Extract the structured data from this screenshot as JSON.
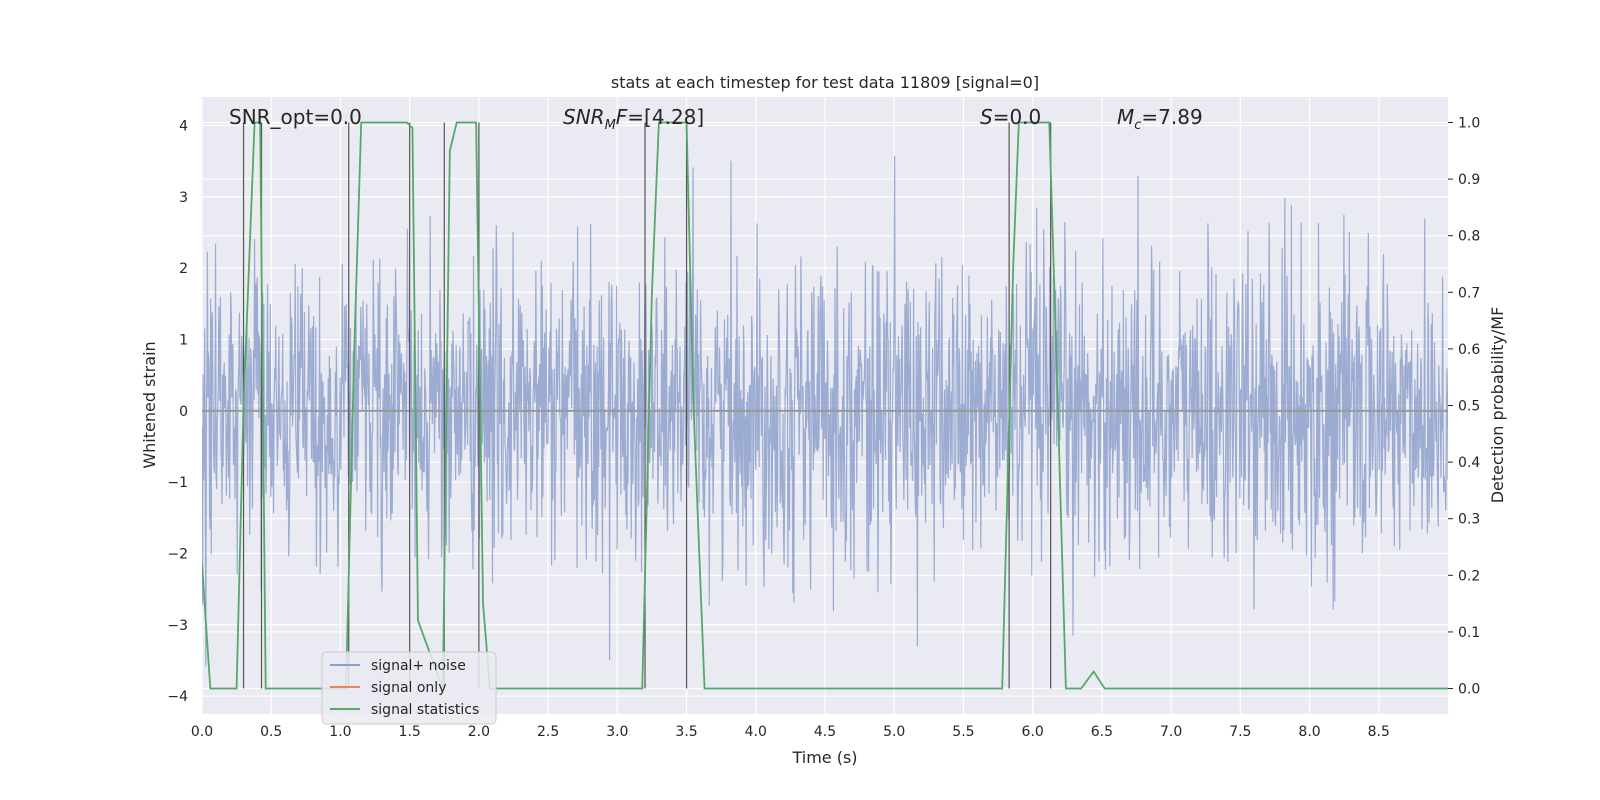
{
  "chart_data": {
    "type": "line",
    "title": "stats at each timestep for test data 11809 [signal=0]",
    "xlabel": "Time (s)",
    "ylabel_left": "Whitened strain",
    "ylabel_right": "Detection probability/MF",
    "xlim": [
      0,
      9.0
    ],
    "ylim_left": [
      -4.25,
      4.4
    ],
    "ylim_right": [
      -0.045,
      1.045
    ],
    "x_ticks": [
      "0.0",
      "0.5",
      "1.0",
      "1.5",
      "2.0",
      "2.5",
      "3.0",
      "3.5",
      "4.0",
      "4.5",
      "5.0",
      "5.5",
      "6.0",
      "6.5",
      "7.0",
      "7.5",
      "8.0",
      "8.5"
    ],
    "y_ticks_left": [
      "4",
      "3",
      "2",
      "1",
      "0",
      "−1",
      "−2",
      "−3",
      "−4"
    ],
    "y_ticks_right": [
      "1.0",
      "0.9",
      "0.8",
      "0.7",
      "0.6",
      "0.5",
      "0.4",
      "0.3",
      "0.2",
      "0.1",
      "0.0"
    ],
    "grid": true,
    "legend_position": "lower-left",
    "annotations": {
      "snr_opt": "SNR_opt=0.0",
      "snr_mf": "=[4.28]",
      "s": "=0.0",
      "mc": "=7.89"
    },
    "vertical_markers": [
      0.3,
      0.43,
      1.06,
      1.5,
      1.75,
      2.0,
      3.2,
      3.5,
      5.83,
      6.13
    ],
    "series": [
      {
        "name": "signal+ noise",
        "axis": "left",
        "color": "#8da0cb",
        "description_values": "dense whitened noise, amplitude roughly within ±2.5 with spikes to ±3.8",
        "amplitude_envelope": [
          -3.8,
          3.8
        ]
      },
      {
        "name": "signal only",
        "axis": "left",
        "color": "#e5845f",
        "values": [
          [
            0,
            0
          ],
          [
            9.0,
            0
          ]
        ]
      },
      {
        "name": "signal statistics",
        "axis": "right",
        "color": "#55a868",
        "x": [
          0.0,
          0.06,
          0.25,
          0.3,
          0.38,
          0.42,
          0.46,
          0.5,
          0.55,
          1.04,
          1.1,
          1.15,
          1.48,
          1.52,
          1.56,
          1.74,
          1.79,
          1.84,
          1.98,
          2.03,
          2.08,
          3.18,
          3.25,
          3.3,
          3.5,
          3.55,
          3.63,
          5.78,
          5.86,
          5.9,
          6.12,
          6.17,
          6.24,
          6.35,
          6.44,
          6.52,
          6.6,
          9.0
        ],
        "values": [
          0.22,
          0.0,
          0.0,
          0.5,
          1.0,
          1.0,
          0.0,
          0.0,
          0.0,
          0.0,
          0.6,
          1.0,
          1.0,
          0.99,
          0.12,
          0.0,
          0.95,
          1.0,
          1.0,
          0.15,
          0.0,
          0.0,
          0.7,
          1.0,
          1.0,
          0.5,
          0.0,
          0.0,
          0.75,
          1.0,
          1.0,
          0.6,
          0.0,
          0.0,
          0.03,
          0.0,
          0.0,
          0.0
        ]
      }
    ]
  }
}
